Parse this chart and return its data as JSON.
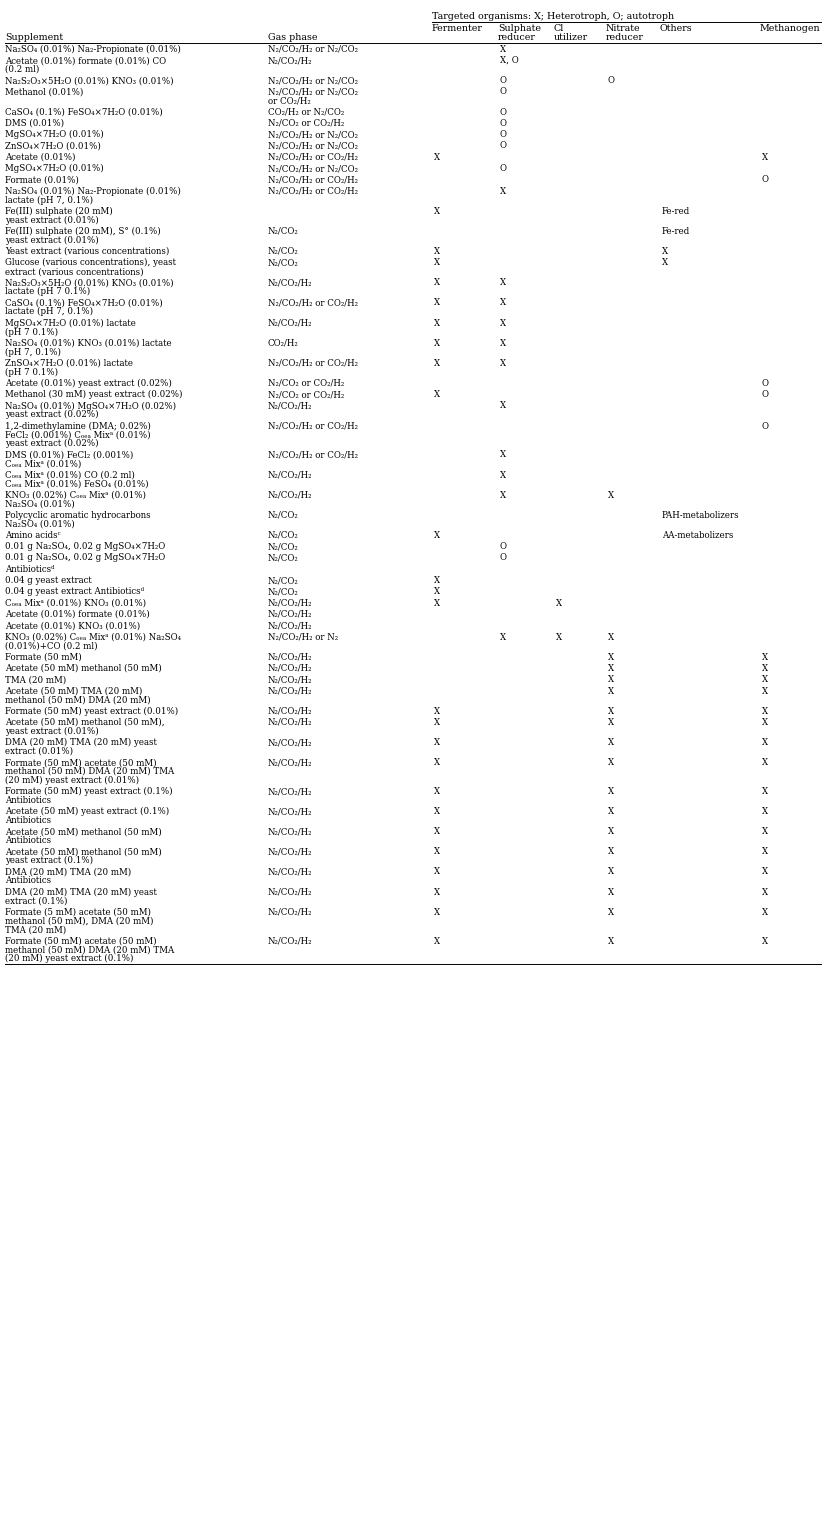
{
  "title": "Targeted organisms: X; Heterotroph, O; autotroph",
  "col_labels_line1": [
    "",
    "",
    "Fermenter",
    "Sulphate",
    "Cl",
    "Nitrate",
    "Others",
    "Methanogen"
  ],
  "col_labels_line2": [
    "Supplement",
    "Gas phase",
    "",
    "reducer",
    "utilizer",
    "reducer",
    "",
    ""
  ],
  "rows": [
    [
      "Na₂SO₄ (0.01%) Na₂-Propionate (0.01%)",
      "N₂/CO₂/H₂ or N₂/CO₂",
      "",
      "X",
      "",
      "",
      "",
      ""
    ],
    [
      "Acetate (0.01%) formate (0.01%) CO\n(0.2 ml)",
      "N₂/CO₂/H₂",
      "",
      "X, O",
      "",
      "",
      "",
      ""
    ],
    [
      "Na₂S₂O₃×5H₂O (0.01%) KNO₃ (0.01%)",
      "N₂/CO₂/H₂ or N₂/CO₂",
      "",
      "O",
      "",
      "O",
      "",
      ""
    ],
    [
      "Methanol (0.01%)",
      "N₂/CO₂/H₂ or N₂/CO₂\nor CO₂/H₂",
      "",
      "O",
      "",
      "",
      "",
      ""
    ],
    [
      "CaSO₄ (0.1%) FeSO₄×7H₂O (0.01%)",
      "CO₂/H₂ or N₂/CO₂",
      "",
      "O",
      "",
      "",
      "",
      ""
    ],
    [
      "DMS (0.01%)",
      "N₂/CO₂ or CO₂/H₂",
      "",
      "O",
      "",
      "",
      "",
      ""
    ],
    [
      "MgSO₄×7H₂O (0.01%)",
      "N₂/CO₂/H₂ or N₂/CO₂",
      "",
      "O",
      "",
      "",
      "",
      ""
    ],
    [
      "ZnSO₄×7H₂O (0.01%)",
      "N₂/CO₂/H₂ or N₂/CO₂",
      "",
      "O",
      "",
      "",
      "",
      ""
    ],
    [
      "Acetate (0.01%)",
      "N₂/CO₂/H₂ or CO₂/H₂",
      "X",
      "",
      "",
      "",
      "",
      "X"
    ],
    [
      "MgSO₄×7H₂O (0.01%)",
      "N₂/CO₂/H₂ or N₂/CO₂",
      "",
      "O",
      "",
      "",
      "",
      ""
    ],
    [
      "Formate (0.01%)",
      "N₂/CO₂/H₂ or CO₂/H₂",
      "",
      "",
      "",
      "",
      "",
      "O"
    ],
    [
      "Na₂SO₄ (0.01%) Na₂-Propionate (0.01%)\nlactate (pH 7, 0.1%)",
      "N₂/CO₂/H₂ or CO₂/H₂",
      "",
      "X",
      "",
      "",
      "",
      ""
    ],
    [
      "Fe(III) sulphate (20 mM)\nyeast extract (0.01%)",
      "",
      "X",
      "",
      "",
      "",
      "Fe-red",
      ""
    ],
    [
      "Fe(III) sulphate (20 mM), S° (0.1%)\nyeast extract (0.01%)",
      "N₂/CO₂",
      "",
      "",
      "",
      "",
      "Fe-red",
      ""
    ],
    [
      "Yeast extract (various concentrations)",
      "N₂/CO₂",
      "X",
      "",
      "",
      "",
      "X",
      ""
    ],
    [
      "Glucose (various concentrations), yeast\nextract (various concentrations)",
      "N₂/CO₂",
      "X",
      "",
      "",
      "",
      "X",
      ""
    ],
    [
      "Na₂S₂O₃×5H₂O (0.01%) KNO₃ (0.01%)\nlactate (pH 7 0.1%)",
      "N₂/CO₂/H₂",
      "X",
      "X",
      "",
      "",
      "",
      ""
    ],
    [
      "CaSO₄ (0.1%) FeSO₄×7H₂O (0.01%)\nlactate (pH 7, 0.1%)",
      "N₂/CO₂/H₂ or CO₂/H₂",
      "X",
      "X",
      "",
      "",
      "",
      ""
    ],
    [
      "MgSO₄×7H₂O (0.01%) lactate\n(pH 7 0.1%)",
      "N₂/CO₂/H₂",
      "X",
      "X",
      "",
      "",
      "",
      ""
    ],
    [
      "Na₂SO₄ (0.01%) KNO₃ (0.01%) lactate\n(pH 7, 0.1%)",
      "CO₂/H₂",
      "X",
      "X",
      "",
      "",
      "",
      ""
    ],
    [
      "ZnSO₄×7H₂O (0.01%) lactate\n(pH 7 0.1%)",
      "N₂/CO₂/H₂ or CO₂/H₂",
      "X",
      "X",
      "",
      "",
      "",
      ""
    ],
    [
      "Acetate (0.01%) yeast extract (0.02%)",
      "N₂/CO₂ or CO₂/H₂",
      "",
      "",
      "",
      "",
      "",
      "O"
    ],
    [
      "Methanol (30 mM) yeast extract (0.02%)",
      "N₂/CO₂ or CO₂/H₂",
      "X",
      "",
      "",
      "",
      "",
      "O"
    ],
    [
      "Na₂SO₄ (0.01%) MgSO₄×7H₂O (0.02%)\nyeast extract (0.02%)",
      "N₂/CO₂/H₂",
      "",
      "X",
      "",
      "",
      "",
      ""
    ],
    [
      "1,2-dimethylamine (DMA; 0.02%)\nFeCl₂ (0.001%) Cₒₑₐ Mixᵃ (0.01%)\nyeast extract (0.02%)",
      "N₂/CO₂/H₂ or CO₂/H₂",
      "",
      "",
      "",
      "",
      "",
      "O"
    ],
    [
      "DMS (0.01%) FeCl₂ (0.001%)\nCₒₑₐ Mixᵃ (0.01%)",
      "N₂/CO₂/H₂ or CO₂/H₂",
      "",
      "X",
      "",
      "",
      "",
      ""
    ],
    [
      "Cₒₑₐ Mixᵃ (0.01%) CO (0.2 ml)\nCₒₑₐ Mixᵃ (0.01%) FeSO₄ (0.01%)",
      "N₂/CO₂/H₂",
      "",
      "X",
      "",
      "",
      "",
      ""
    ],
    [
      "KNO₃ (0.02%) Cₒₑₐ Mixᵃ (0.01%)\nNa₂SO₄ (0.01%)",
      "N₂/CO₂/H₂",
      "",
      "X",
      "",
      "X",
      "",
      ""
    ],
    [
      "Polycyclic aromatic hydrocarbons\nNa₂SO₄ (0.01%)",
      "N₂/CO₂",
      "",
      "",
      "",
      "",
      "PAH-metabolizers",
      ""
    ],
    [
      "Amino acidsᶜ",
      "N₂/CO₂",
      "X",
      "",
      "",
      "",
      "AA-metabolizers",
      ""
    ],
    [
      "0.01 g Na₂SO₄, 0.02 g MgSO₄×7H₂O",
      "N₂/CO₂",
      "",
      "O",
      "",
      "",
      "",
      ""
    ],
    [
      "0.01 g Na₂SO₄, 0.02 g MgSO₄×7H₂O",
      "N₂/CO₂",
      "",
      "O",
      "",
      "",
      "",
      ""
    ],
    [
      "Antibioticsᵈ",
      "",
      "",
      "",
      "",
      "",
      "",
      ""
    ],
    [
      "0.04 g yeast extract",
      "N₂/CO₂",
      "X",
      "",
      "",
      "",
      "",
      ""
    ],
    [
      "0.04 g yeast extract Antibioticsᵈ",
      "N₂/CO₂",
      "X",
      "",
      "",
      "",
      "",
      ""
    ],
    [
      "Cₒₑₐ Mixᵃ (0.01%) KNO₃ (0.01%)",
      "N₂/CO₂/H₂",
      "X",
      "",
      "X",
      "",
      "",
      ""
    ],
    [
      "Acetate (0.01%) formate (0.01%)",
      "N₂/CO₂/H₂",
      "",
      "",
      "",
      "",
      "",
      ""
    ],
    [
      "Acetate (0.01%) KNO₃ (0.01%)",
      "N₂/CO₂/H₂",
      "",
      "",
      "",
      "",
      "",
      ""
    ],
    [
      "KNO₃ (0.02%) Cₒₑₐ Mixᵃ (0.01%) Na₂SO₄\n(0.01%)+CO (0.2 ml)",
      "N₂/CO₂/H₂ or N₂",
      "",
      "X",
      "X",
      "X",
      "",
      ""
    ],
    [
      "Formate (50 mM)",
      "N₂/CO₂/H₂",
      "",
      "",
      "",
      "X",
      "",
      "X"
    ],
    [
      "Acetate (50 mM) methanol (50 mM)",
      "N₂/CO₂/H₂",
      "",
      "",
      "",
      "X",
      "",
      "X"
    ],
    [
      "TMA (20 mM)",
      "N₂/CO₂/H₂",
      "",
      "",
      "",
      "X",
      "",
      "X"
    ],
    [
      "Acetate (50 mM) TMA (20 mM)\nmethanol (50 mM) DMA (20 mM)",
      "N₂/CO₂/H₂",
      "",
      "",
      "",
      "X",
      "",
      "X"
    ],
    [
      "Formate (50 mM) yeast extract (0.01%)",
      "N₂/CO₂/H₂",
      "X",
      "",
      "",
      "X",
      "",
      "X"
    ],
    [
      "Acetate (50 mM) methanol (50 mM),\nyeast extract (0.01%)",
      "N₂/CO₂/H₂",
      "X",
      "",
      "",
      "X",
      "",
      "X"
    ],
    [
      "DMA (20 mM) TMA (20 mM) yeast\nextract (0.01%)",
      "N₂/CO₂/H₂",
      "X",
      "",
      "",
      "X",
      "",
      "X"
    ],
    [
      "Formate (50 mM) acetate (50 mM)\nmethanol (50 mM) DMA (20 mM) TMA\n(20 mM) yeast extract (0.01%)",
      "N₂/CO₂/H₂",
      "X",
      "",
      "",
      "X",
      "",
      "X"
    ],
    [
      "Formate (50 mM) yeast extract (0.1%)\nAntibiotics",
      "N₂/CO₂/H₂",
      "X",
      "",
      "",
      "X",
      "",
      "X"
    ],
    [
      "Acetate (50 mM) yeast extract (0.1%)\nAntibiotics",
      "N₂/CO₂/H₂",
      "X",
      "",
      "",
      "X",
      "",
      "X"
    ],
    [
      "Acetate (50 mM) methanol (50 mM)\nAntibiotics",
      "N₂/CO₂/H₂",
      "X",
      "",
      "",
      "X",
      "",
      "X"
    ],
    [
      "Acetate (50 mM) methanol (50 mM)\nyeast extract (0.1%)",
      "N₂/CO₂/H₂",
      "X",
      "",
      "",
      "X",
      "",
      "X"
    ],
    [
      "DMA (20 mM) TMA (20 mM)\nAntibiotics",
      "N₂/CO₂/H₂",
      "X",
      "",
      "",
      "X",
      "",
      "X"
    ],
    [
      "DMA (20 mM) TMA (20 mM) yeast\nextract (0.1%)",
      "N₂/CO₂/H₂",
      "X",
      "",
      "",
      "X",
      "",
      "X"
    ],
    [
      "Formate (5 mM) acetate (50 mM)\nmethanol (50 mM), DMA (20 mM)\nTMA (20 mM)",
      "N₂/CO₂/H₂",
      "X",
      "",
      "",
      "X",
      "",
      "X"
    ],
    [
      "Formate (50 mM) acetate (50 mM)\nmethanol (50 mM) DMA (20 mM) TMA\n(20 mM) yeast extract (0.1%)",
      "N₂/CO₂/H₂",
      "X",
      "",
      "",
      "X",
      "",
      "X"
    ]
  ],
  "background_color": "#ffffff",
  "text_color": "#000000",
  "font_size": 6.2,
  "header_font_size": 6.8
}
